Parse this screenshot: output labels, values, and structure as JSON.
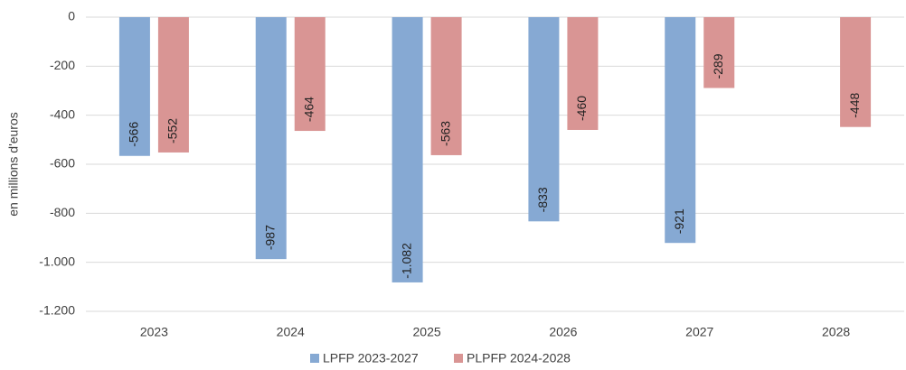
{
  "chart_data": {
    "type": "bar",
    "y_axis_label": "en millions d'euros",
    "categories": [
      "2023",
      "2024",
      "2025",
      "2026",
      "2027",
      "2028"
    ],
    "series": [
      {
        "name": "LPFP 2023-2027",
        "color": "#86a9d3",
        "values": [
          -566,
          -987,
          -1082,
          -833,
          -921,
          null
        ],
        "value_labels": [
          "-566",
          "-987",
          "-1.082",
          "-833",
          "-921",
          null
        ]
      },
      {
        "name": "PLPFP 2024-2028",
        "color": "#d99594",
        "values": [
          -552,
          -464,
          -563,
          -460,
          -289,
          -448
        ],
        "value_labels": [
          "-552",
          "-464",
          "-563",
          "-460",
          "-289",
          "-448"
        ]
      }
    ],
    "ylim": [
      -1200,
      0
    ],
    "yticks": [
      0,
      -200,
      -400,
      -600,
      -800,
      {
        "value": -1000,
        "label": "-1.000"
      },
      {
        "value": -1200,
        "label": "-1.200"
      }
    ],
    "grid": true,
    "legend": "bottom"
  }
}
